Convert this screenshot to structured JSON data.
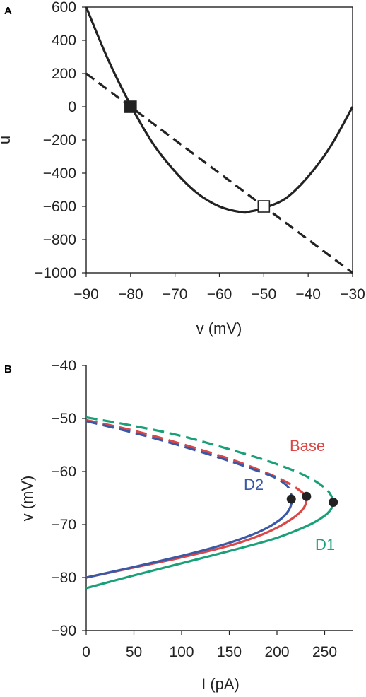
{
  "chart_data": [
    {
      "panel": "A",
      "type": "line",
      "xlabel": "v (mV)",
      "ylabel": "u",
      "xlim": [
        -90,
        -30
      ],
      "ylim": [
        -1000,
        600
      ],
      "xticks": [
        -90,
        -80,
        -70,
        -60,
        -50,
        -40,
        -30
      ],
      "yticks": [
        600,
        400,
        200,
        0,
        -200,
        -400,
        -600,
        -800,
        -1000
      ],
      "grid": false,
      "series": [
        {
          "style": "solid",
          "color": "#222222",
          "x": [
            -90,
            -85,
            -80,
            -75,
            -70,
            -65,
            -60,
            -55,
            -53,
            -50,
            -45,
            -40,
            -35,
            -30
          ],
          "y": [
            600,
            280,
            10,
            -220,
            -390,
            -520,
            -600,
            -635,
            -630,
            -610,
            -550,
            -420,
            -240,
            0
          ]
        },
        {
          "style": "dashed",
          "color": "#222222",
          "x": [
            -90,
            -30
          ],
          "y": [
            200,
            -1000
          ]
        }
      ],
      "markers": [
        {
          "shape": "square",
          "fill": "filled",
          "x": -80,
          "y": 0
        },
        {
          "shape": "square",
          "fill": "open",
          "x": -50,
          "y": -600
        }
      ]
    },
    {
      "panel": "B",
      "type": "line",
      "xlabel": "I (pA)",
      "ylabel": "v (mV)",
      "xlim": [
        0,
        260
      ],
      "ylim": [
        -90,
        -40
      ],
      "xticks": [
        0,
        50,
        100,
        150,
        200,
        250
      ],
      "yticks": [
        -40,
        -50,
        -60,
        -70,
        -80,
        -90
      ],
      "grid": false,
      "series": [
        {
          "name": "Base",
          "color": "#d94747",
          "I": [
            0,
            50,
            100,
            150,
            180,
            200,
            215,
            224,
            229,
            231,
            229,
            224,
            215,
            200,
            180,
            150,
            100,
            50,
            0
          ],
          "v": [
            -50.3,
            -52.3,
            -54.8,
            -57.6,
            -59.6,
            -61.1,
            -62.5,
            -63.6,
            -64.4,
            -65.5,
            -66.6,
            -67.7,
            -69.0,
            -70.6,
            -72.2,
            -74.0,
            -76.2,
            -78.1,
            -80
          ],
          "stable_from_index": 9
        },
        {
          "name": "D2",
          "color": "#3a58a6",
          "I": [
            0,
            50,
            100,
            150,
            180,
            195,
            205,
            211,
            214,
            216,
            214,
            210,
            203,
            190,
            170,
            140,
            100,
            50,
            0
          ],
          "v": [
            -50.5,
            -52.7,
            -55.2,
            -58.0,
            -59.9,
            -60.9,
            -61.9,
            -62.8,
            -63.8,
            -65.3,
            -66.7,
            -67.9,
            -69.1,
            -70.6,
            -72.2,
            -74.0,
            -75.9,
            -78.0,
            -80
          ],
          "stable_from_index": 9
        },
        {
          "name": "D1",
          "color": "#1aa079",
          "I": [
            0,
            50,
            100,
            150,
            190,
            220,
            240,
            252,
            257,
            259,
            257,
            251,
            240,
            222,
            195,
            150,
            100,
            50,
            0
          ],
          "v": [
            -49.8,
            -51.4,
            -53.3,
            -55.8,
            -58.0,
            -60.0,
            -61.8,
            -63.4,
            -64.6,
            -65.8,
            -67.0,
            -68.2,
            -69.5,
            -71.0,
            -72.8,
            -75.0,
            -77.3,
            -79.6,
            -82
          ],
          "stable_from_index": 9
        }
      ],
      "bifurcation_points": [
        {
          "I": 215,
          "v": -65.2
        },
        {
          "I": 231,
          "v": -64.7
        },
        {
          "I": 259,
          "v": -65.8
        }
      ]
    }
  ]
}
